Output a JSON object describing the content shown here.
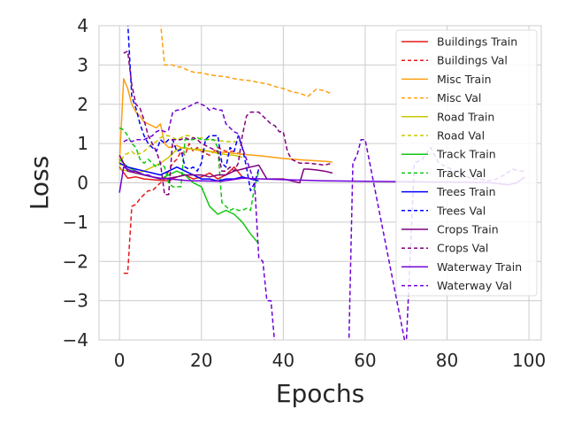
{
  "chart_data": {
    "type": "line",
    "xlabel": "Epochs",
    "ylabel": "Loss",
    "xlim": [
      -5,
      103
    ],
    "ylim": [
      -4,
      4
    ],
    "xticks": [
      0,
      20,
      40,
      60,
      80,
      100
    ],
    "yticks": [
      -4,
      -3,
      -2,
      -1,
      0,
      1,
      2,
      3,
      4
    ],
    "xtick_labels": [
      "0",
      "20",
      "40",
      "60",
      "80",
      "100"
    ],
    "ytick_labels": [
      "−4",
      "−3",
      "−2",
      "−1",
      "0",
      "1",
      "2",
      "3",
      "4"
    ],
    "grid": true,
    "legend_position": "top-right",
    "series": [
      {
        "name": "Buildings Train",
        "color": "#e41a1c",
        "dash": false,
        "x": [
          0,
          2,
          4,
          6,
          8,
          10,
          12,
          14,
          16,
          18,
          20,
          22,
          24,
          26,
          28,
          30
        ],
        "y": [
          0.4,
          0.12,
          0.15,
          0.1,
          0.08,
          0.06,
          0.05,
          0.15,
          0.2,
          0.1,
          0.15,
          0.25,
          0.1,
          0.2,
          0.4,
          0.15
        ]
      },
      {
        "name": "Buildings Val",
        "color": "#e41a1c",
        "dash": true,
        "x": [
          1,
          2,
          3,
          4,
          5,
          6,
          7,
          8,
          9,
          10,
          11,
          12,
          13,
          14,
          15,
          16,
          17,
          18,
          19,
          20,
          22,
          24,
          26,
          28,
          30
        ],
        "y": [
          -2.3,
          -2.3,
          -0.6,
          -0.55,
          -0.4,
          -0.3,
          -0.2,
          -0.2,
          -0.1,
          0,
          0.1,
          0.3,
          0.5,
          0.6,
          0.8,
          0.7,
          1.0,
          0.8,
          0.9,
          0.8,
          0.7,
          0.9,
          0.8,
          0.8,
          0.7
        ]
      },
      {
        "name": "Misc Train",
        "color": "#ff9e0f",
        "dash": false,
        "x": [
          0,
          1,
          2,
          3,
          4,
          5,
          6,
          7,
          8,
          9,
          10,
          11,
          12,
          13,
          14,
          15,
          16,
          18,
          20,
          22,
          24,
          26,
          28,
          30,
          35,
          40,
          45,
          50,
          52
        ],
        "y": [
          0.5,
          2.65,
          2.4,
          2.0,
          1.8,
          1.7,
          1.55,
          1.5,
          1.45,
          1.4,
          1.5,
          1.0,
          0.9,
          0.92,
          0.95,
          0.9,
          0.88,
          0.85,
          0.82,
          0.8,
          0.78,
          0.77,
          0.75,
          0.73,
          0.68,
          0.62,
          0.58,
          0.55,
          0.53
        ]
      },
      {
        "name": "Misc Val",
        "color": "#ff9e0f",
        "dash": true,
        "x": [
          10,
          11,
          12,
          13,
          14,
          15,
          16,
          17,
          18,
          19,
          20,
          22,
          24,
          26,
          28,
          30,
          32,
          34,
          36,
          38,
          40,
          42,
          44,
          46,
          48,
          50,
          52
        ],
        "y": [
          4.1,
          3.0,
          3.0,
          3.0,
          2.95,
          2.95,
          2.9,
          2.85,
          2.82,
          2.8,
          2.8,
          2.75,
          2.72,
          2.7,
          2.65,
          2.62,
          2.6,
          2.55,
          2.52,
          2.45,
          2.4,
          2.32,
          2.28,
          2.2,
          2.38,
          2.35,
          2.25
        ]
      },
      {
        "name": "Road Train",
        "color": "#c8c800",
        "dash": false,
        "x": [
          0,
          2,
          4,
          6,
          8,
          10,
          12,
          14,
          16,
          18,
          20,
          22,
          24,
          26,
          28,
          30
        ],
        "y": [
          0.35,
          0.3,
          0.25,
          0.3,
          0.4,
          0.5,
          0.65,
          0.85,
          0.9,
          0.85,
          0.85,
          0.8,
          0.75,
          0.72,
          0.7,
          0.65
        ]
      },
      {
        "name": "Road Val",
        "color": "#c8c800",
        "dash": true,
        "x": [
          0,
          1,
          2,
          3,
          4,
          5,
          6,
          7,
          8,
          9,
          10,
          11,
          12,
          13,
          14,
          15,
          16,
          17,
          18,
          19,
          20,
          22,
          24,
          26,
          28,
          30
        ],
        "y": [
          0.4,
          0.7,
          0.75,
          0.8,
          0.7,
          0.75,
          0.8,
          0.9,
          1.0,
          1.05,
          1.15,
          1.2,
          1.2,
          1.15,
          1.1,
          1.15,
          1.2,
          1.2,
          1.15,
          1.1,
          1.15,
          1.1,
          1.08,
          1.05,
          1.05,
          1.0
        ]
      },
      {
        "name": "Track Train",
        "color": "#11c711",
        "dash": false,
        "x": [
          0,
          2,
          4,
          6,
          8,
          10,
          12,
          14,
          16,
          18,
          20,
          22,
          24,
          26,
          28,
          30,
          32,
          34
        ],
        "y": [
          0.6,
          0.4,
          0.3,
          0.2,
          0.15,
          0.1,
          0.2,
          0.3,
          0.2,
          0.0,
          -0.1,
          -0.6,
          -0.8,
          -0.7,
          -0.8,
          -1.0,
          -1.3,
          -1.55
        ]
      },
      {
        "name": "Track Val",
        "color": "#11c711",
        "dash": true,
        "x": [
          0,
          1,
          2,
          3,
          4,
          5,
          6,
          7,
          8,
          9,
          10,
          11,
          12,
          13,
          14,
          15,
          16,
          17,
          18,
          19,
          20,
          21,
          22,
          23,
          24,
          25,
          26,
          27,
          28,
          29,
          30,
          31,
          32,
          33,
          34
        ],
        "y": [
          1.4,
          1.35,
          1.2,
          1.0,
          0.9,
          0.6,
          0.5,
          0.6,
          0.5,
          0.4,
          0.5,
          0.4,
          0.0,
          -0.1,
          -0.1,
          -0.1,
          1.1,
          1.1,
          1.1,
          1.15,
          1.1,
          1.1,
          1.1,
          1.1,
          0.9,
          -0.5,
          -0.6,
          -0.7,
          -0.65,
          -0.7,
          -0.7,
          -0.65,
          -0.7,
          -0.1,
          0.3
        ]
      },
      {
        "name": "Trees Train",
        "color": "#0000ff",
        "dash": false,
        "x": [
          0,
          2,
          4,
          6,
          8,
          10,
          12,
          14,
          16,
          18,
          20,
          22,
          24,
          26,
          28,
          30,
          32,
          34
        ],
        "y": [
          0.5,
          0.4,
          0.35,
          0.3,
          0.25,
          0.2,
          0.3,
          0.4,
          0.3,
          0.2,
          0.1,
          0.1,
          0.05,
          0.1,
          0.1,
          0.15,
          0.1,
          0.05
        ]
      },
      {
        "name": "Trees Val",
        "color": "#0000ff",
        "dash": true,
        "x": [
          2,
          3,
          4,
          5,
          6,
          7,
          8,
          9,
          10,
          11,
          12,
          13,
          14,
          15,
          16,
          17,
          18,
          19,
          20,
          21,
          22,
          23,
          24,
          25,
          26,
          27,
          28,
          29,
          30,
          31,
          32,
          33,
          34
        ],
        "y": [
          4.1,
          2.2,
          1.9,
          1.5,
          1.2,
          1.0,
          0.9,
          0.8,
          1.1,
          1.0,
          1.1,
          1.1,
          0.8,
          0.85,
          0.4,
          0.35,
          0.4,
          0.3,
          0.5,
          1.1,
          1.2,
          1.2,
          1.2,
          0.5,
          0.4,
          0.9,
          0.8,
          1.2,
          0.9,
          0.4,
          -0.2,
          0.0,
          0.35
        ]
      },
      {
        "name": "Crops Train",
        "color": "#800080",
        "dash": false,
        "x": [
          0,
          2,
          4,
          6,
          8,
          10,
          12,
          14,
          16,
          18,
          20,
          22,
          24,
          26,
          28,
          30,
          32,
          34,
          36,
          38,
          40,
          42,
          44,
          45,
          46,
          48,
          50,
          52
        ],
        "y": [
          0.7,
          0.3,
          0.25,
          0.2,
          0.15,
          0.1,
          0.12,
          0.15,
          0.2,
          0.2,
          0.2,
          0.15,
          0.2,
          0.2,
          0.3,
          0.35,
          0.4,
          0.45,
          0.1,
          0.1,
          0.1,
          0.05,
          0.0,
          0.35,
          0.35,
          0.33,
          0.3,
          0.25
        ]
      },
      {
        "name": "Crops Val",
        "color": "#800080",
        "dash": true,
        "x": [
          1,
          2,
          3,
          4,
          5,
          6,
          7,
          8,
          9,
          10,
          11,
          12,
          13,
          14,
          15,
          16,
          17,
          18,
          19,
          20,
          21,
          22,
          23,
          24,
          25,
          26,
          27,
          28,
          29,
          30,
          31,
          32,
          33,
          34,
          35,
          36,
          37,
          38,
          39,
          40,
          41,
          42,
          43,
          44,
          46,
          48,
          50,
          52
        ],
        "y": [
          3.3,
          3.35,
          2.5,
          2.0,
          1.9,
          1.6,
          1.2,
          1.0,
          0.8,
          0.5,
          -0.3,
          -0.3,
          1.1,
          1.1,
          1.1,
          1.15,
          1.1,
          1.15,
          1.1,
          1.0,
          0.95,
          0.9,
          0.85,
          0.8,
          0.3,
          0.3,
          0.4,
          0.3,
          0.5,
          1.2,
          1.7,
          1.8,
          1.8,
          1.8,
          1.7,
          1.6,
          1.5,
          1.45,
          1.3,
          1.3,
          0.8,
          0.6,
          0.55,
          0.5,
          0.5,
          0.48,
          0.45,
          0.5
        ]
      },
      {
        "name": "Waterway Train",
        "color": "#7000d8",
        "dash": false,
        "x": [
          0,
          1,
          2,
          3,
          4,
          5,
          6,
          7,
          8,
          10,
          12,
          14,
          16,
          18,
          20,
          25,
          30,
          35,
          40,
          50,
          60,
          70,
          80,
          90,
          95,
          97,
          99
        ],
        "y": [
          -0.25,
          0.4,
          0.35,
          0.3,
          0.3,
          0.25,
          0.2,
          0.2,
          0.15,
          0.12,
          0.1,
          0.08,
          0.06,
          0.05,
          0.05,
          0.04,
          0.12,
          0.1,
          0.08,
          0.05,
          0.04,
          0.03,
          0.02,
          0.01,
          -0.05,
          0.0,
          0.15
        ]
      },
      {
        "name": "Waterway Val",
        "color": "#7000d8",
        "dash": true,
        "x": [
          1,
          2,
          3,
          4,
          5,
          6,
          7,
          8,
          9,
          10,
          11,
          12,
          13,
          14,
          15,
          16,
          17,
          18,
          19,
          20,
          21,
          22,
          23,
          24,
          25,
          26,
          27,
          28,
          29,
          30,
          31,
          32,
          33,
          34,
          35,
          36,
          37,
          38,
          56,
          57,
          58,
          59,
          60,
          70,
          72,
          74,
          76,
          78,
          80,
          82,
          84,
          86,
          88,
          90,
          92,
          94,
          96,
          98,
          99
        ],
        "y": [
          1.05,
          1.1,
          1.05,
          1.1,
          1.1,
          1.1,
          1.15,
          1.2,
          1.3,
          1.35,
          1.3,
          1.35,
          1.8,
          1.85,
          1.85,
          1.9,
          1.95,
          2.0,
          2.05,
          2.0,
          1.95,
          1.85,
          1.9,
          1.85,
          1.85,
          1.5,
          1.4,
          1.3,
          1.25,
          0.9,
          0.6,
          0.3,
          0.0,
          -1.9,
          -2.0,
          -3.0,
          -3.0,
          -4.2,
          -4.2,
          0.5,
          0.7,
          1.1,
          1.1,
          -4.2,
          0.5,
          0.6,
          0.9,
          0.5,
          0.4,
          0.3,
          0.2,
          0.1,
          0.1,
          0.05,
          0.1,
          0.2,
          0.35,
          0.3,
          0.3
        ]
      }
    ]
  }
}
